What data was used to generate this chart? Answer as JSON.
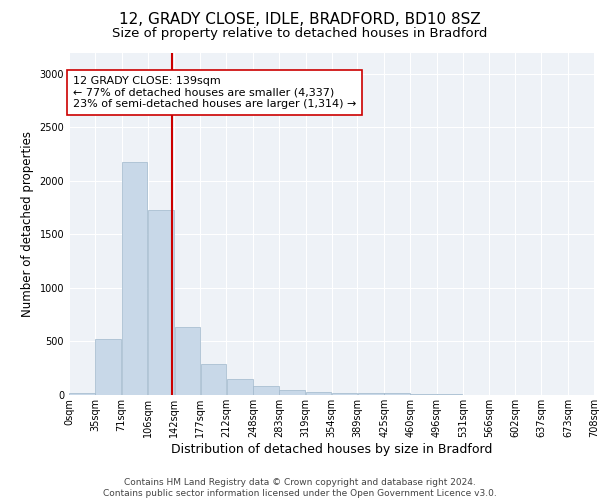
{
  "title1": "12, GRADY CLOSE, IDLE, BRADFORD, BD10 8SZ",
  "title2": "Size of property relative to detached houses in Bradford",
  "xlabel": "Distribution of detached houses by size in Bradford",
  "ylabel": "Number of detached properties",
  "bar_values": [
    20,
    525,
    2175,
    1725,
    640,
    290,
    150,
    80,
    45,
    30,
    20,
    15,
    20,
    5,
    5,
    2,
    2,
    1,
    1,
    0
  ],
  "bin_edges": [
    0,
    35,
    71,
    106,
    142,
    177,
    212,
    248,
    283,
    319,
    354,
    389,
    425,
    460,
    496,
    531,
    566,
    602,
    637,
    673,
    708
  ],
  "tick_labels": [
    "0sqm",
    "35sqm",
    "71sqm",
    "106sqm",
    "142sqm",
    "177sqm",
    "212sqm",
    "248sqm",
    "283sqm",
    "319sqm",
    "354sqm",
    "389sqm",
    "425sqm",
    "460sqm",
    "496sqm",
    "531sqm",
    "566sqm",
    "602sqm",
    "637sqm",
    "673sqm",
    "708sqm"
  ],
  "bar_color": "#c8d8e8",
  "bar_edgecolor": "#a0b8cc",
  "marker_x": 139,
  "marker_color": "#cc0000",
  "annotation_text": "12 GRADY CLOSE: 139sqm\n← 77% of detached houses are smaller (4,337)\n23% of semi-detached houses are larger (1,314) →",
  "annotation_box_color": "#ffffff",
  "annotation_box_edgecolor": "#cc0000",
  "ylim": [
    0,
    3200
  ],
  "yticks": [
    0,
    500,
    1000,
    1500,
    2000,
    2500,
    3000
  ],
  "xlim": [
    0,
    708
  ],
  "background_color": "#eef2f7",
  "footer_text": "Contains HM Land Registry data © Crown copyright and database right 2024.\nContains public sector information licensed under the Open Government Licence v3.0.",
  "title1_fontsize": 11,
  "title2_fontsize": 9.5,
  "xlabel_fontsize": 9,
  "ylabel_fontsize": 8.5,
  "annotation_fontsize": 8,
  "footer_fontsize": 6.5,
  "tick_fontsize": 7
}
